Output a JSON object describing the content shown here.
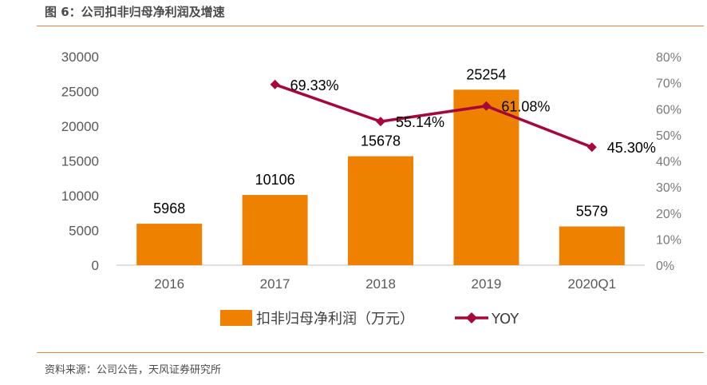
{
  "figure": {
    "title": "图 6：公司扣非归母净利润及增速",
    "source": "资料来源：公司公告，天风证券研究所"
  },
  "colors": {
    "bar": "#ee8100",
    "line": "#a6083a",
    "axis": "#bfbfbf",
    "rule": "#e0853a"
  },
  "chart_data": {
    "type": "bar",
    "categories": [
      "2016",
      "2017",
      "2018",
      "2019",
      "2020Q1"
    ],
    "series": [
      {
        "name": "扣非归母净利润（万元）",
        "type": "bar",
        "axis": "left",
        "values": [
          5968,
          10106,
          15678,
          25254,
          5579
        ],
        "labels": [
          "5968",
          "10106",
          "15678",
          "25254",
          "5579"
        ]
      },
      {
        "name": "YOY",
        "type": "line",
        "axis": "right",
        "marker": "diamond",
        "values": [
          null,
          69.33,
          55.14,
          61.08,
          45.3
        ],
        "labels": [
          "",
          "69.33%",
          "55.14%",
          "61.08%",
          "45.30%"
        ]
      }
    ],
    "y_left": {
      "ylim": [
        0,
        30000
      ],
      "ticks": [
        "0",
        "5000",
        "10000",
        "15000",
        "20000",
        "25000",
        "30000"
      ]
    },
    "y_right": {
      "ylim": [
        0,
        80
      ],
      "ticks": [
        "0%",
        "10%",
        "20%",
        "30%",
        "40%",
        "50%",
        "60%",
        "70%",
        "80%"
      ]
    },
    "legend": {
      "position": "bottom"
    },
    "grid": false
  }
}
